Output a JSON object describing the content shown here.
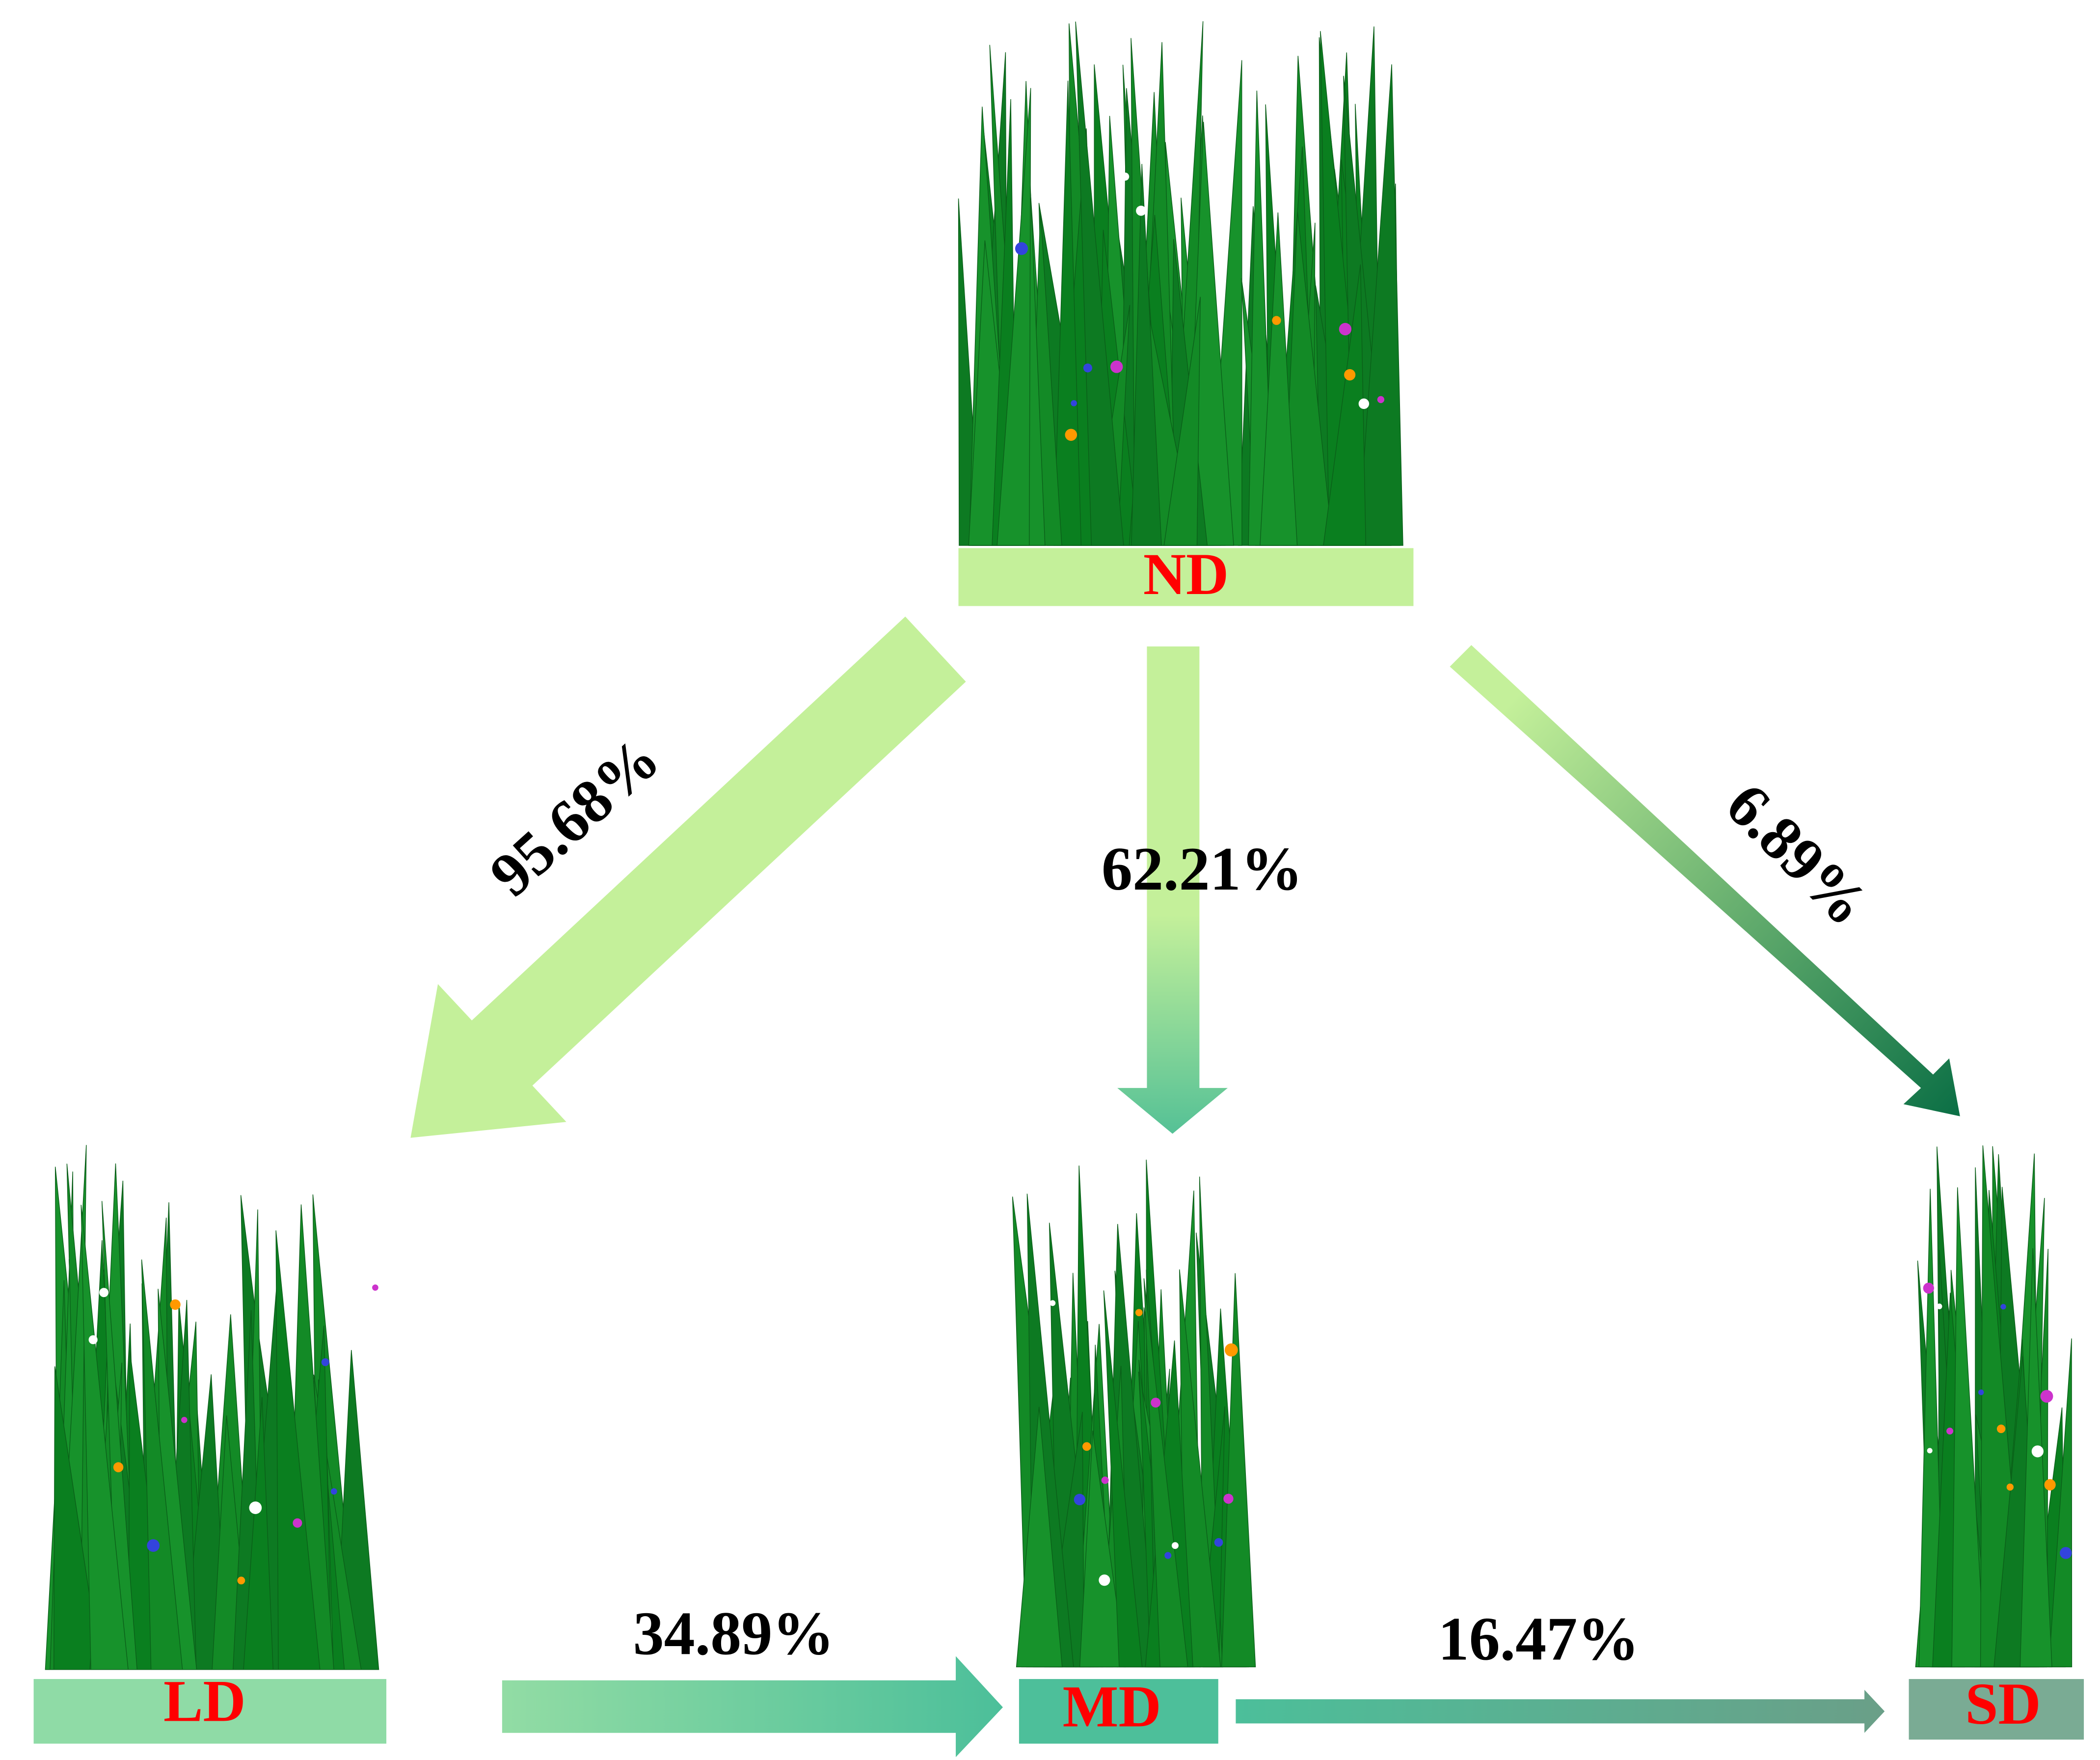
{
  "nodes": [
    {
      "label": "ND"
    },
    {
      "label": "LD"
    },
    {
      "label": "MD"
    },
    {
      "label": "SD"
    }
  ],
  "edges": [
    {
      "label": "95.68%"
    },
    {
      "label": "62.21%"
    },
    {
      "label": "6.89%"
    },
    {
      "label": "34.89%"
    },
    {
      "label": "16.47%"
    }
  ]
}
